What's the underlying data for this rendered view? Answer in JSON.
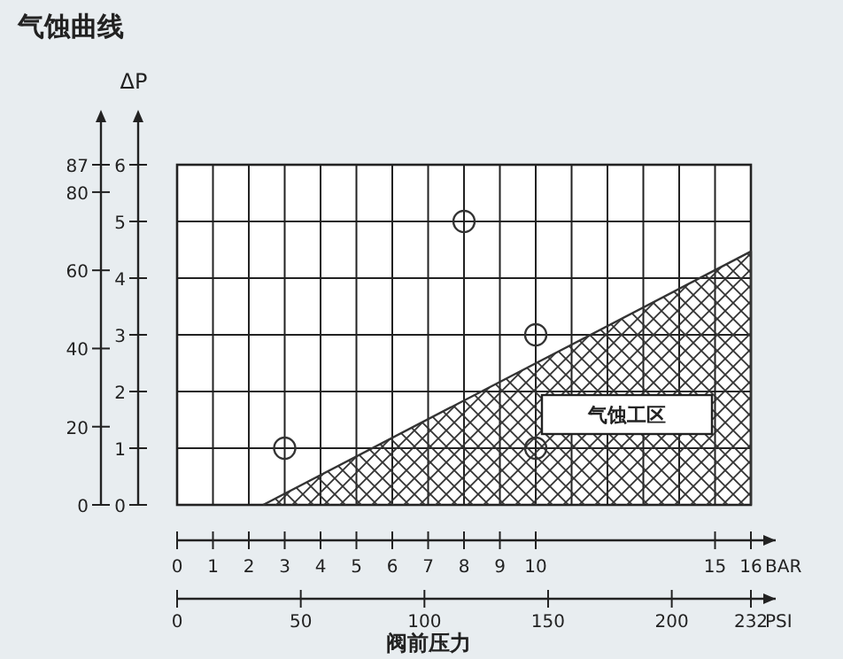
{
  "chart_data": {
    "type": "scatter",
    "title": "气蚀曲线",
    "ylabel": "ΔP",
    "xlabel": "BAR",
    "x2label": "PSI",
    "xlim": [
      0,
      16
    ],
    "xticks": [
      0,
      1,
      2,
      3,
      4,
      5,
      6,
      7,
      8,
      9,
      10,
      15,
      16
    ],
    "x2lim": [
      0,
      232
    ],
    "x2ticks": [
      0,
      50,
      100,
      150,
      200,
      232
    ],
    "ylim": [
      0,
      6
    ],
    "yticks": [
      0,
      1,
      2,
      3,
      4,
      5,
      6
    ],
    "y2lim": [
      0,
      87
    ],
    "y2ticks": [
      0,
      20,
      40,
      60,
      80,
      87
    ],
    "grid": true,
    "series": [
      {
        "type": "area",
        "color": "#333333",
        "x": [
          2.4,
          16
        ],
        "values": [
          0,
          4.47
        ]
      },
      {
        "color": "#333333",
        "marker": "circle",
        "x": [
          3,
          8,
          10,
          10
        ],
        "values": [
          1,
          5,
          3,
          1
        ]
      }
    ],
    "annotations": [
      "阀前压力",
      "气蚀工区"
    ]
  }
}
